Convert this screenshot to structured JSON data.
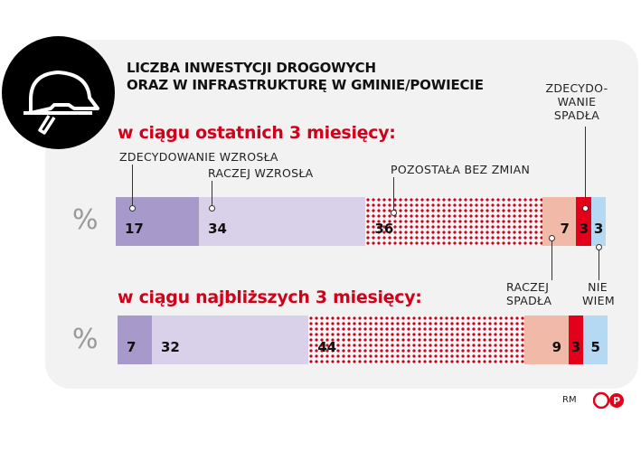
{
  "title_line1": "LICZBA INWESTYCJI DROGOWYCH",
  "title_line2": "ORAZ W INFRASTRUKTURĘ W GMINIE/POWIECIE",
  "icon": "hard-hat-icon",
  "footer": {
    "author": "RM",
    "logo": "PAP"
  },
  "chart_data": [
    {
      "type": "bar",
      "stacked": true,
      "orientation": "horizontal",
      "title": "w ciągu ostatnich 3 miesięcy:",
      "unit": "%",
      "categories": [
        "ZDECYDOWANIE WZROSŁA",
        "RACZEJ WZROSŁA",
        "POZOSTAŁA BEZ ZMIAN",
        "RACZEJ SPADŁA",
        "ZDECYDOWANIE SPADŁA",
        "NIE WIEM"
      ],
      "values": [
        17,
        34,
        36,
        7,
        3,
        3
      ]
    },
    {
      "type": "bar",
      "stacked": true,
      "orientation": "horizontal",
      "title": "w ciągu najbliższych 3 miesięcy:",
      "unit": "%",
      "categories": [
        "ZDECYDOWANIE WZROSŁA",
        "RACZEJ WZROSŁA",
        "POZOSTAŁA BEZ ZMIAN",
        "RACZEJ SPADŁA",
        "ZDECYDOWANIE SPADŁA",
        "NIE WIEM"
      ],
      "values": [
        7,
        32,
        44,
        9,
        3,
        5
      ]
    }
  ],
  "colors": [
    "#a799c9",
    "#d9d1ea",
    "dotted-#d0021b",
    "#f0b9a8",
    "#e2001a",
    "#b5d9f3"
  ],
  "labels": {
    "zw": "ZDECYDOWANIE WZROSŁA",
    "rw": "RACZEJ WZROSŁA",
    "bz": "POZOSTAŁA BEZ ZMIAN",
    "zs1": "ZDECYDO-",
    "zs2": "WANIE",
    "zs3": "SPADŁA",
    "rs1": "RACZEJ",
    "rs2": "SPADŁA",
    "nw1": "NIE",
    "nw2": "WIEM"
  }
}
